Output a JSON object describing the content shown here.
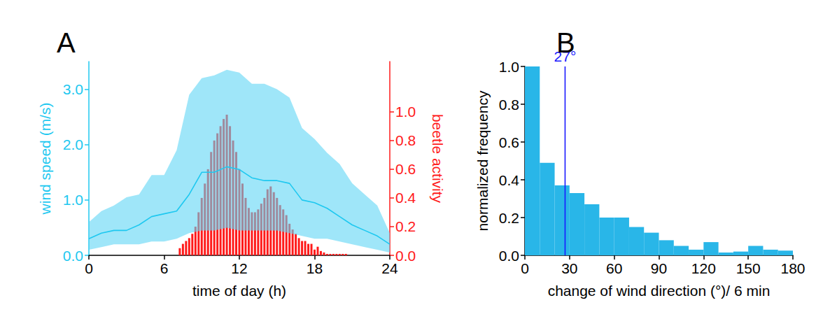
{
  "chart_data": [
    {
      "type": "line",
      "title": "A",
      "x_label": "time of day (h)",
      "y_label": "wind speed (m/s)",
      "y2_label": "beetle activity",
      "xlim": [
        0,
        24
      ],
      "xticks": [
        0,
        6,
        12,
        18,
        24
      ],
      "ylim": [
        0,
        3.5
      ],
      "yticks": [
        {
          "value": 0,
          "label": "0.0"
        },
        {
          "value": 1,
          "label": "1.0"
        },
        {
          "value": 2,
          "label": "2.0"
        },
        {
          "value": 3,
          "label": "3.0"
        }
      ],
      "y2lim": [
        0,
        1.35
      ],
      "y2ticks": [
        {
          "value": 0,
          "label": "0.0"
        },
        0.2,
        0.4,
        0.6,
        0.8,
        {
          "value": 1,
          "label": "1.0"
        }
      ],
      "grid": false,
      "series": [
        {
          "type": "bar",
          "axis": "y2",
          "color": "#ff1a1a",
          "x": [
            7.25,
            7.5,
            7.75,
            8,
            8.25,
            8.5,
            8.75,
            9,
            9.25,
            9.5,
            9.75,
            10,
            10.25,
            10.5,
            10.75,
            11,
            11.25,
            11.5,
            11.75,
            12,
            12.25,
            12.5,
            12.75,
            13,
            13.25,
            13.5,
            13.75,
            14,
            14.25,
            14.5,
            14.75,
            15,
            15.25,
            15.5,
            15.75,
            16,
            16.25,
            16.5,
            16.75,
            17,
            17.25,
            17.5,
            17.75,
            18,
            18.25,
            18.5,
            18.75,
            19,
            19.25,
            19.5,
            19.75,
            20,
            20.25,
            20.5
          ],
          "values": [
            0.05,
            0.08,
            0.1,
            0.12,
            0.15,
            0.2,
            0.3,
            0.4,
            0.5,
            0.6,
            0.72,
            0.8,
            0.85,
            0.9,
            0.95,
            0.98,
            0.9,
            0.8,
            0.72,
            0.6,
            0.5,
            0.4,
            0.33,
            0.3,
            0.3,
            0.32,
            0.36,
            0.4,
            0.46,
            0.48,
            0.44,
            0.4,
            0.35,
            0.32,
            0.28,
            0.22,
            0.18,
            0.15,
            0.12,
            0.1,
            0.1,
            0.08,
            0.08,
            0.04,
            0.06,
            0.03,
            0.02,
            0.01,
            0.01,
            0.01,
            0.01,
            0.01,
            0.01,
            0.01
          ]
        },
        {
          "type": "band",
          "color": "#5fd6f5",
          "x": [
            0,
            1,
            2,
            3,
            4,
            5,
            6,
            7,
            8,
            9,
            10,
            11,
            12,
            13,
            14,
            15,
            16,
            17,
            18,
            19,
            20,
            21,
            22,
            23,
            24
          ],
          "lower": [
            0.1,
            0.15,
            0.2,
            0.2,
            0.2,
            0.25,
            0.25,
            0.3,
            0.4,
            0.45,
            0.45,
            0.5,
            0.45,
            0.45,
            0.45,
            0.45,
            0.4,
            0.35,
            0.3,
            0.3,
            0.25,
            0.2,
            0.15,
            0.1,
            0.05
          ],
          "upper": [
            0.6,
            0.8,
            0.9,
            1.05,
            1.1,
            1.45,
            1.45,
            1.9,
            2.9,
            3.2,
            3.25,
            3.35,
            3.3,
            3.1,
            3.1,
            3.0,
            2.85,
            2.3,
            2.1,
            1.85,
            1.65,
            1.3,
            1.1,
            0.9,
            0.4
          ]
        },
        {
          "type": "line",
          "color": "#1ec8f0",
          "x": [
            0,
            1,
            2,
            3,
            4,
            5,
            6,
            7,
            8,
            9,
            10,
            11,
            12,
            13,
            14,
            15,
            16,
            17,
            18,
            19,
            20,
            21,
            22,
            23,
            24
          ],
          "values": [
            0.3,
            0.4,
            0.45,
            0.45,
            0.55,
            0.7,
            0.75,
            0.8,
            1.1,
            1.5,
            1.5,
            1.6,
            1.55,
            1.4,
            1.35,
            1.35,
            1.3,
            1.0,
            0.95,
            0.85,
            0.7,
            0.55,
            0.45,
            0.35,
            0.2
          ]
        }
      ]
    },
    {
      "type": "histogram",
      "title": "B",
      "x_label": "change of wind direction (°)/ 6 min",
      "y_label": "normalized frequency",
      "bins": [
        0,
        10,
        20,
        30,
        40,
        50,
        60,
        70,
        80,
        90,
        100,
        110,
        120,
        130,
        140,
        150,
        160,
        170,
        180
      ],
      "values": [
        1.0,
        0.49,
        0.37,
        0.33,
        0.27,
        0.2,
        0.2,
        0.15,
        0.12,
        0.08,
        0.05,
        0.03,
        0.07,
        0.015,
        0.02,
        0.05,
        0.03,
        0.025
      ],
      "color": "#29b6e8",
      "xlim": [
        0,
        180
      ],
      "xticks": [
        0,
        30,
        60,
        90,
        120,
        150,
        180
      ],
      "ylim": [
        0,
        1
      ],
      "yticks": [
        {
          "value": 0,
          "label": "0.0"
        },
        0.2,
        0.4,
        0.6,
        0.8,
        {
          "value": 1,
          "label": "1.0"
        }
      ],
      "grid": false,
      "annotations": [
        {
          "x": 27,
          "label": "27°",
          "color": "#1a1aff"
        }
      ]
    }
  ]
}
